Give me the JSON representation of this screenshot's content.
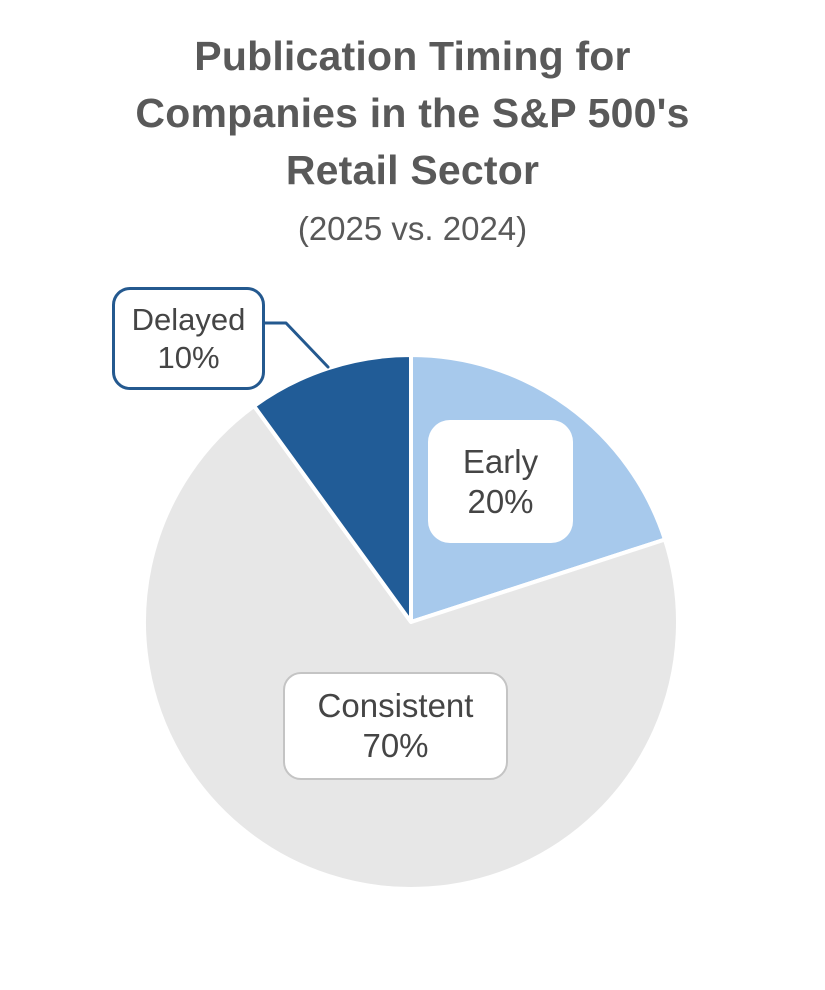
{
  "title": {
    "line1": "Publication Timing for",
    "line2": "Companies in the S&P 500's",
    "line3": "Retail Sector",
    "subtitle": "(2025 vs. 2024)"
  },
  "chart_data": {
    "type": "pie",
    "title": "Publication Timing for Companies in the S&P 500's Retail Sector (2025 vs. 2024)",
    "categories": [
      "Early",
      "Consistent",
      "Delayed"
    ],
    "values": [
      20,
      70,
      10
    ],
    "value_labels": [
      "20%",
      "70%",
      "10%"
    ],
    "unit": "percent",
    "slice_colors": [
      "#A7C9EC",
      "#E7E7E7",
      "#215C97"
    ],
    "start_angle_deg": -90,
    "direction": "clockwise",
    "separator_color": "#FFFFFF",
    "accent_color": "#24598F",
    "consistent_box_border_color": "#C4C4C4",
    "title_color": "#595959",
    "label_text_color": "#454545",
    "legend": "none",
    "label_style": "callout-boxes-on-slices"
  }
}
